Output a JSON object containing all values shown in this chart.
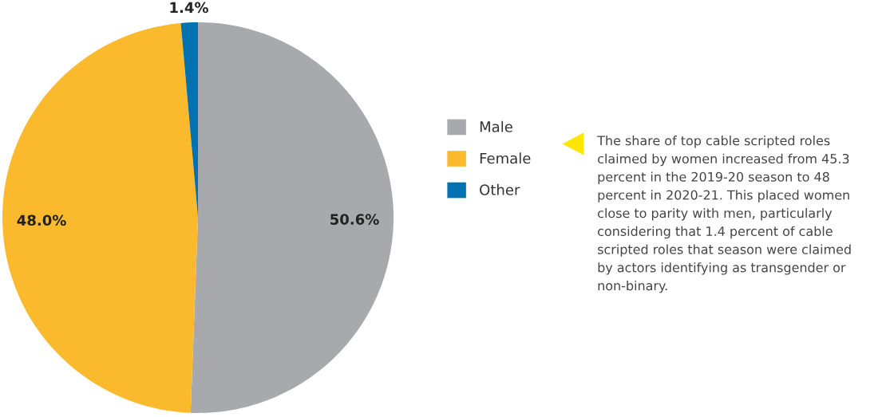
{
  "chart_data": {
    "type": "pie",
    "categories": [
      "Male",
      "Female",
      "Other"
    ],
    "values": [
      50.6,
      48.0,
      1.4
    ],
    "colors": [
      "#a7a9ac",
      "#fbb92e",
      "#0072b1"
    ],
    "value_labels": [
      "50.6%",
      "48.0%",
      "1.4%"
    ],
    "legend": "right",
    "annotations": [
      "The share of top cable scripted roles\nclaimed by women increased from 45.3\npercent in the 2019-20 season to 48\npercent in 2020-21. This placed women\nclose to parity with men, particularly\nconsidering that 1.4 percent of cable\nscripted roles that season were claimed\nby actors identifying as transgender or\nnon-binary."
    ]
  }
}
